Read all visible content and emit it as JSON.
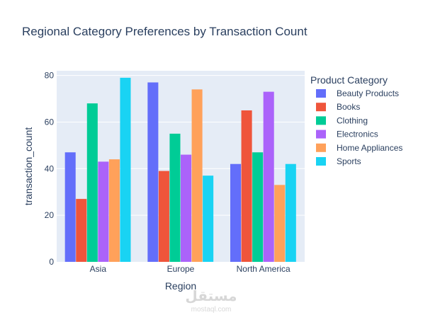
{
  "chart_data": {
    "type": "bar",
    "title": "Regional Category Preferences by Transaction Count",
    "xlabel": "Region",
    "ylabel": "transaction_count",
    "categories": [
      "Asia",
      "Europe",
      "North America"
    ],
    "ylim": [
      0,
      82
    ],
    "yticks": [
      0,
      20,
      40,
      60,
      80
    ],
    "grid": true,
    "legend_title": "Product Category",
    "legend_position": "right",
    "series": [
      {
        "name": "Beauty Products",
        "color": "#636efa",
        "values": [
          47,
          77,
          42
        ]
      },
      {
        "name": "Books",
        "color": "#ef553b",
        "values": [
          27,
          39,
          65
        ]
      },
      {
        "name": "Clothing",
        "color": "#00cc96",
        "values": [
          68,
          55,
          47
        ]
      },
      {
        "name": "Electronics",
        "color": "#ab63fa",
        "values": [
          43,
          46,
          73
        ]
      },
      {
        "name": "Home Appliances",
        "color": "#ffa15a",
        "values": [
          44,
          74,
          33
        ]
      },
      {
        "name": "Sports",
        "color": "#19d3f3",
        "values": [
          79,
          37,
          42
        ]
      }
    ]
  },
  "watermark": {
    "arabic_text": "مستقل",
    "latin_text": "mostaql.com"
  }
}
